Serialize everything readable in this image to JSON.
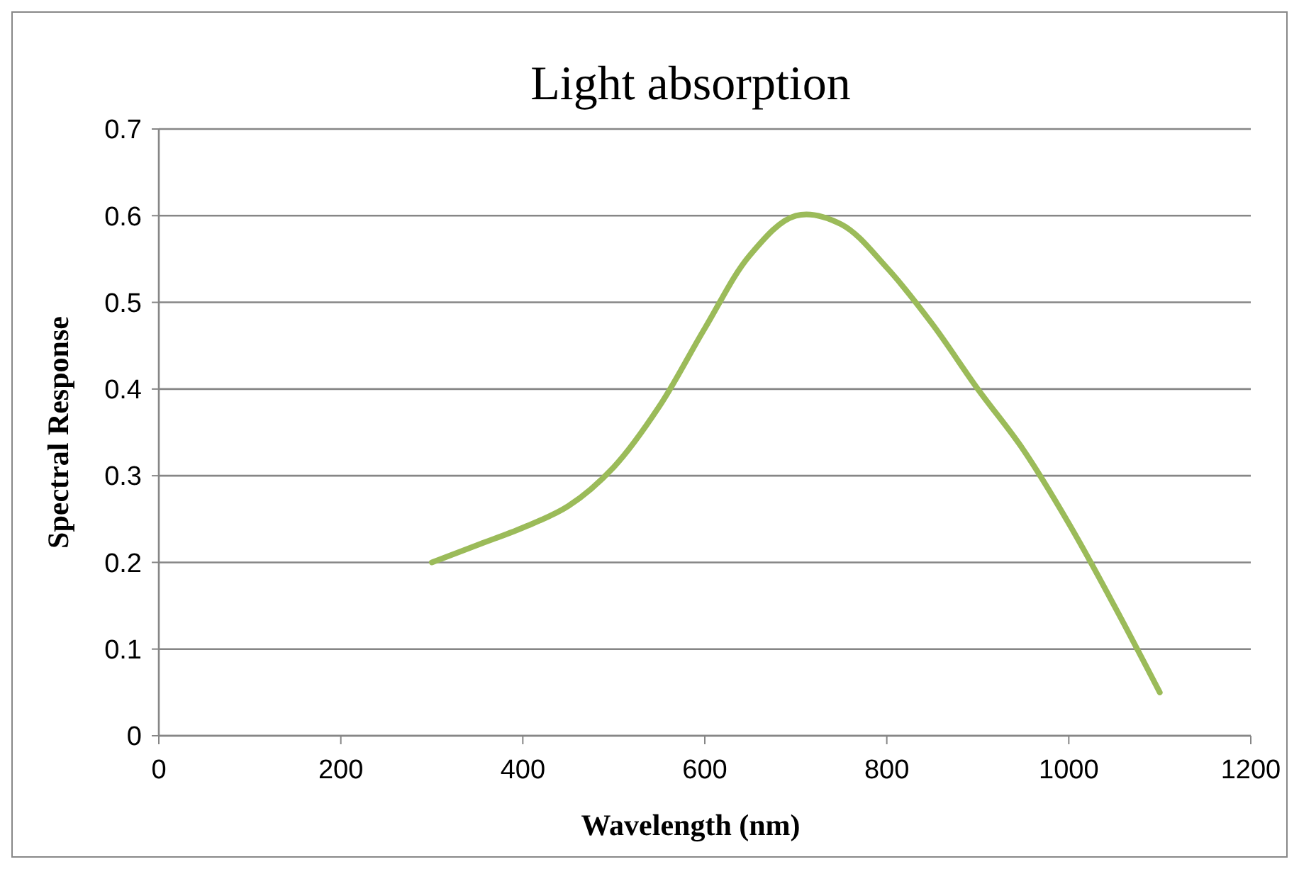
{
  "chart_data": {
    "type": "line",
    "title": "Light absorption",
    "xlabel": "Wavelength (nm)",
    "ylabel": "Spectral Response",
    "x": [
      300,
      350,
      400,
      450,
      500,
      550,
      600,
      650,
      700,
      750,
      800,
      850,
      900,
      950,
      1000,
      1050,
      1100
    ],
    "series": [
      {
        "color": "#9bbb59",
        "values": [
          0.2,
          0.22,
          0.24,
          0.265,
          0.31,
          0.38,
          0.47,
          0.555,
          0.6,
          0.59,
          0.54,
          0.475,
          0.4,
          0.33,
          0.245,
          0.15,
          0.05
        ]
      }
    ],
    "xlim": [
      0,
      1200
    ],
    "xticks": [
      0,
      200,
      400,
      600,
      800,
      1000,
      1200
    ],
    "ylim": [
      0,
      0.7
    ],
    "yticks": [
      0,
      0.1,
      0.2,
      0.3,
      0.4,
      0.5,
      0.6,
      0.7
    ],
    "grid": "y",
    "marker": "none",
    "line_style": "solid"
  }
}
